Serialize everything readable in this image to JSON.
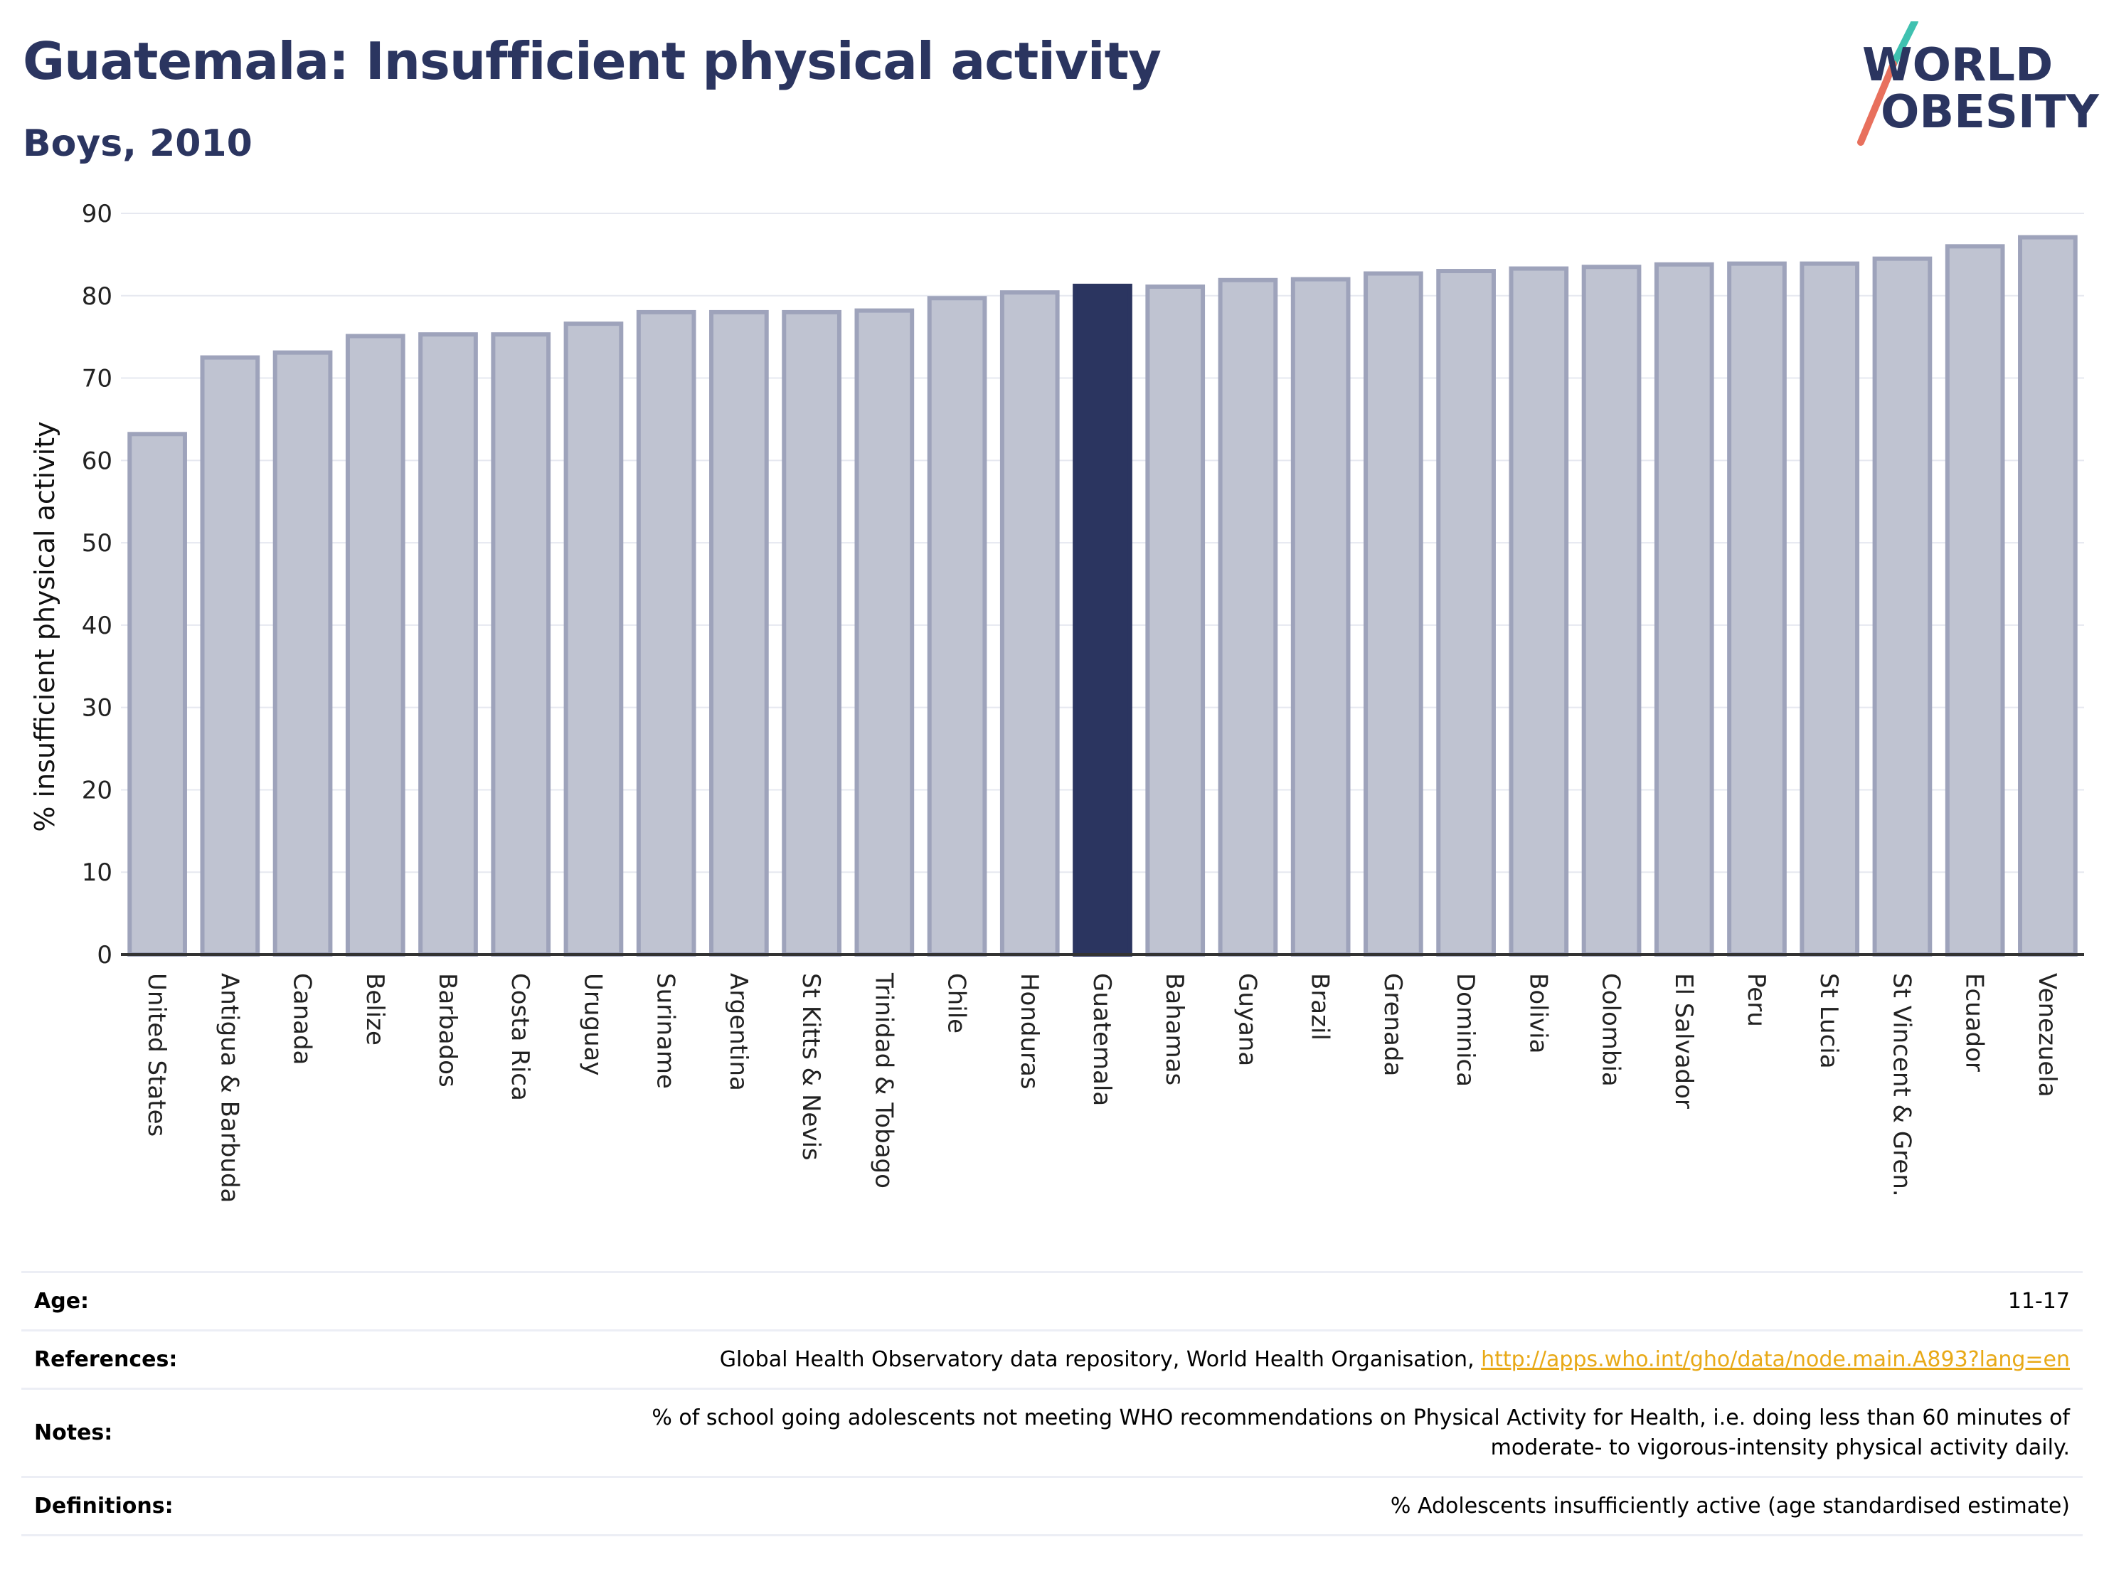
{
  "header": {
    "title": "Guatemala: Insufficient physical activity",
    "subtitle": "Boys, 2010"
  },
  "logo": {
    "line1": "WORLD",
    "line2": "OBESITY"
  },
  "chart_data": {
    "type": "bar",
    "ylabel": "% insufficient physical activity",
    "ylim": [
      0,
      90
    ],
    "yticks": [
      0,
      10,
      20,
      30,
      40,
      50,
      60,
      70,
      80,
      90
    ],
    "grid": true,
    "highlight": "Guatemala",
    "colors": {
      "bar": "#bfc3d1",
      "bar_edge": "#9ea3bb",
      "highlight": "#2b3560",
      "grid": "#e6e8f0",
      "axis": "#333333"
    },
    "categories": [
      "United States",
      "Antigua & Barbuda",
      "Canada",
      "Belize",
      "Barbados",
      "Costa Rica",
      "Uruguay",
      "Suriname",
      "Argentina",
      "St Kitts & Nevis",
      "Trinidad & Tobago",
      "Chile",
      "Honduras",
      "Guatemala",
      "Bahamas",
      "Guyana",
      "Brazil",
      "Grenada",
      "Dominica",
      "Bolivia",
      "Colombia",
      "El Salvador",
      "Peru",
      "St Lucia",
      "St Vincent & Gren.",
      "Ecuador",
      "Venezuela"
    ],
    "values": [
      63.2,
      72.5,
      73.1,
      75.1,
      75.3,
      75.3,
      76.6,
      78.0,
      78.0,
      78.0,
      78.2,
      79.7,
      80.4,
      81.2,
      81.1,
      81.9,
      82.0,
      82.7,
      83.0,
      83.3,
      83.5,
      83.8,
      83.9,
      83.9,
      84.5,
      86.0,
      87.1
    ]
  },
  "info": [
    {
      "key": "Age:",
      "value": "11-17"
    },
    {
      "key": "References:",
      "value": "Global Health Observatory data repository, World Health Organisation, ",
      "link": "http://apps.who.int/gho/data/node.main.A893?lang=en"
    },
    {
      "key": "Notes:",
      "value": "% of school going adolescents not meeting WHO recommendations on Physical Activity for Health, i.e. doing less than 60 minutes of",
      "value2": "moderate- to vigorous-intensity physical activity daily."
    },
    {
      "key": "Definitions:",
      "value": "% Adolescents insufficiently active (age standardised estimate)"
    }
  ]
}
